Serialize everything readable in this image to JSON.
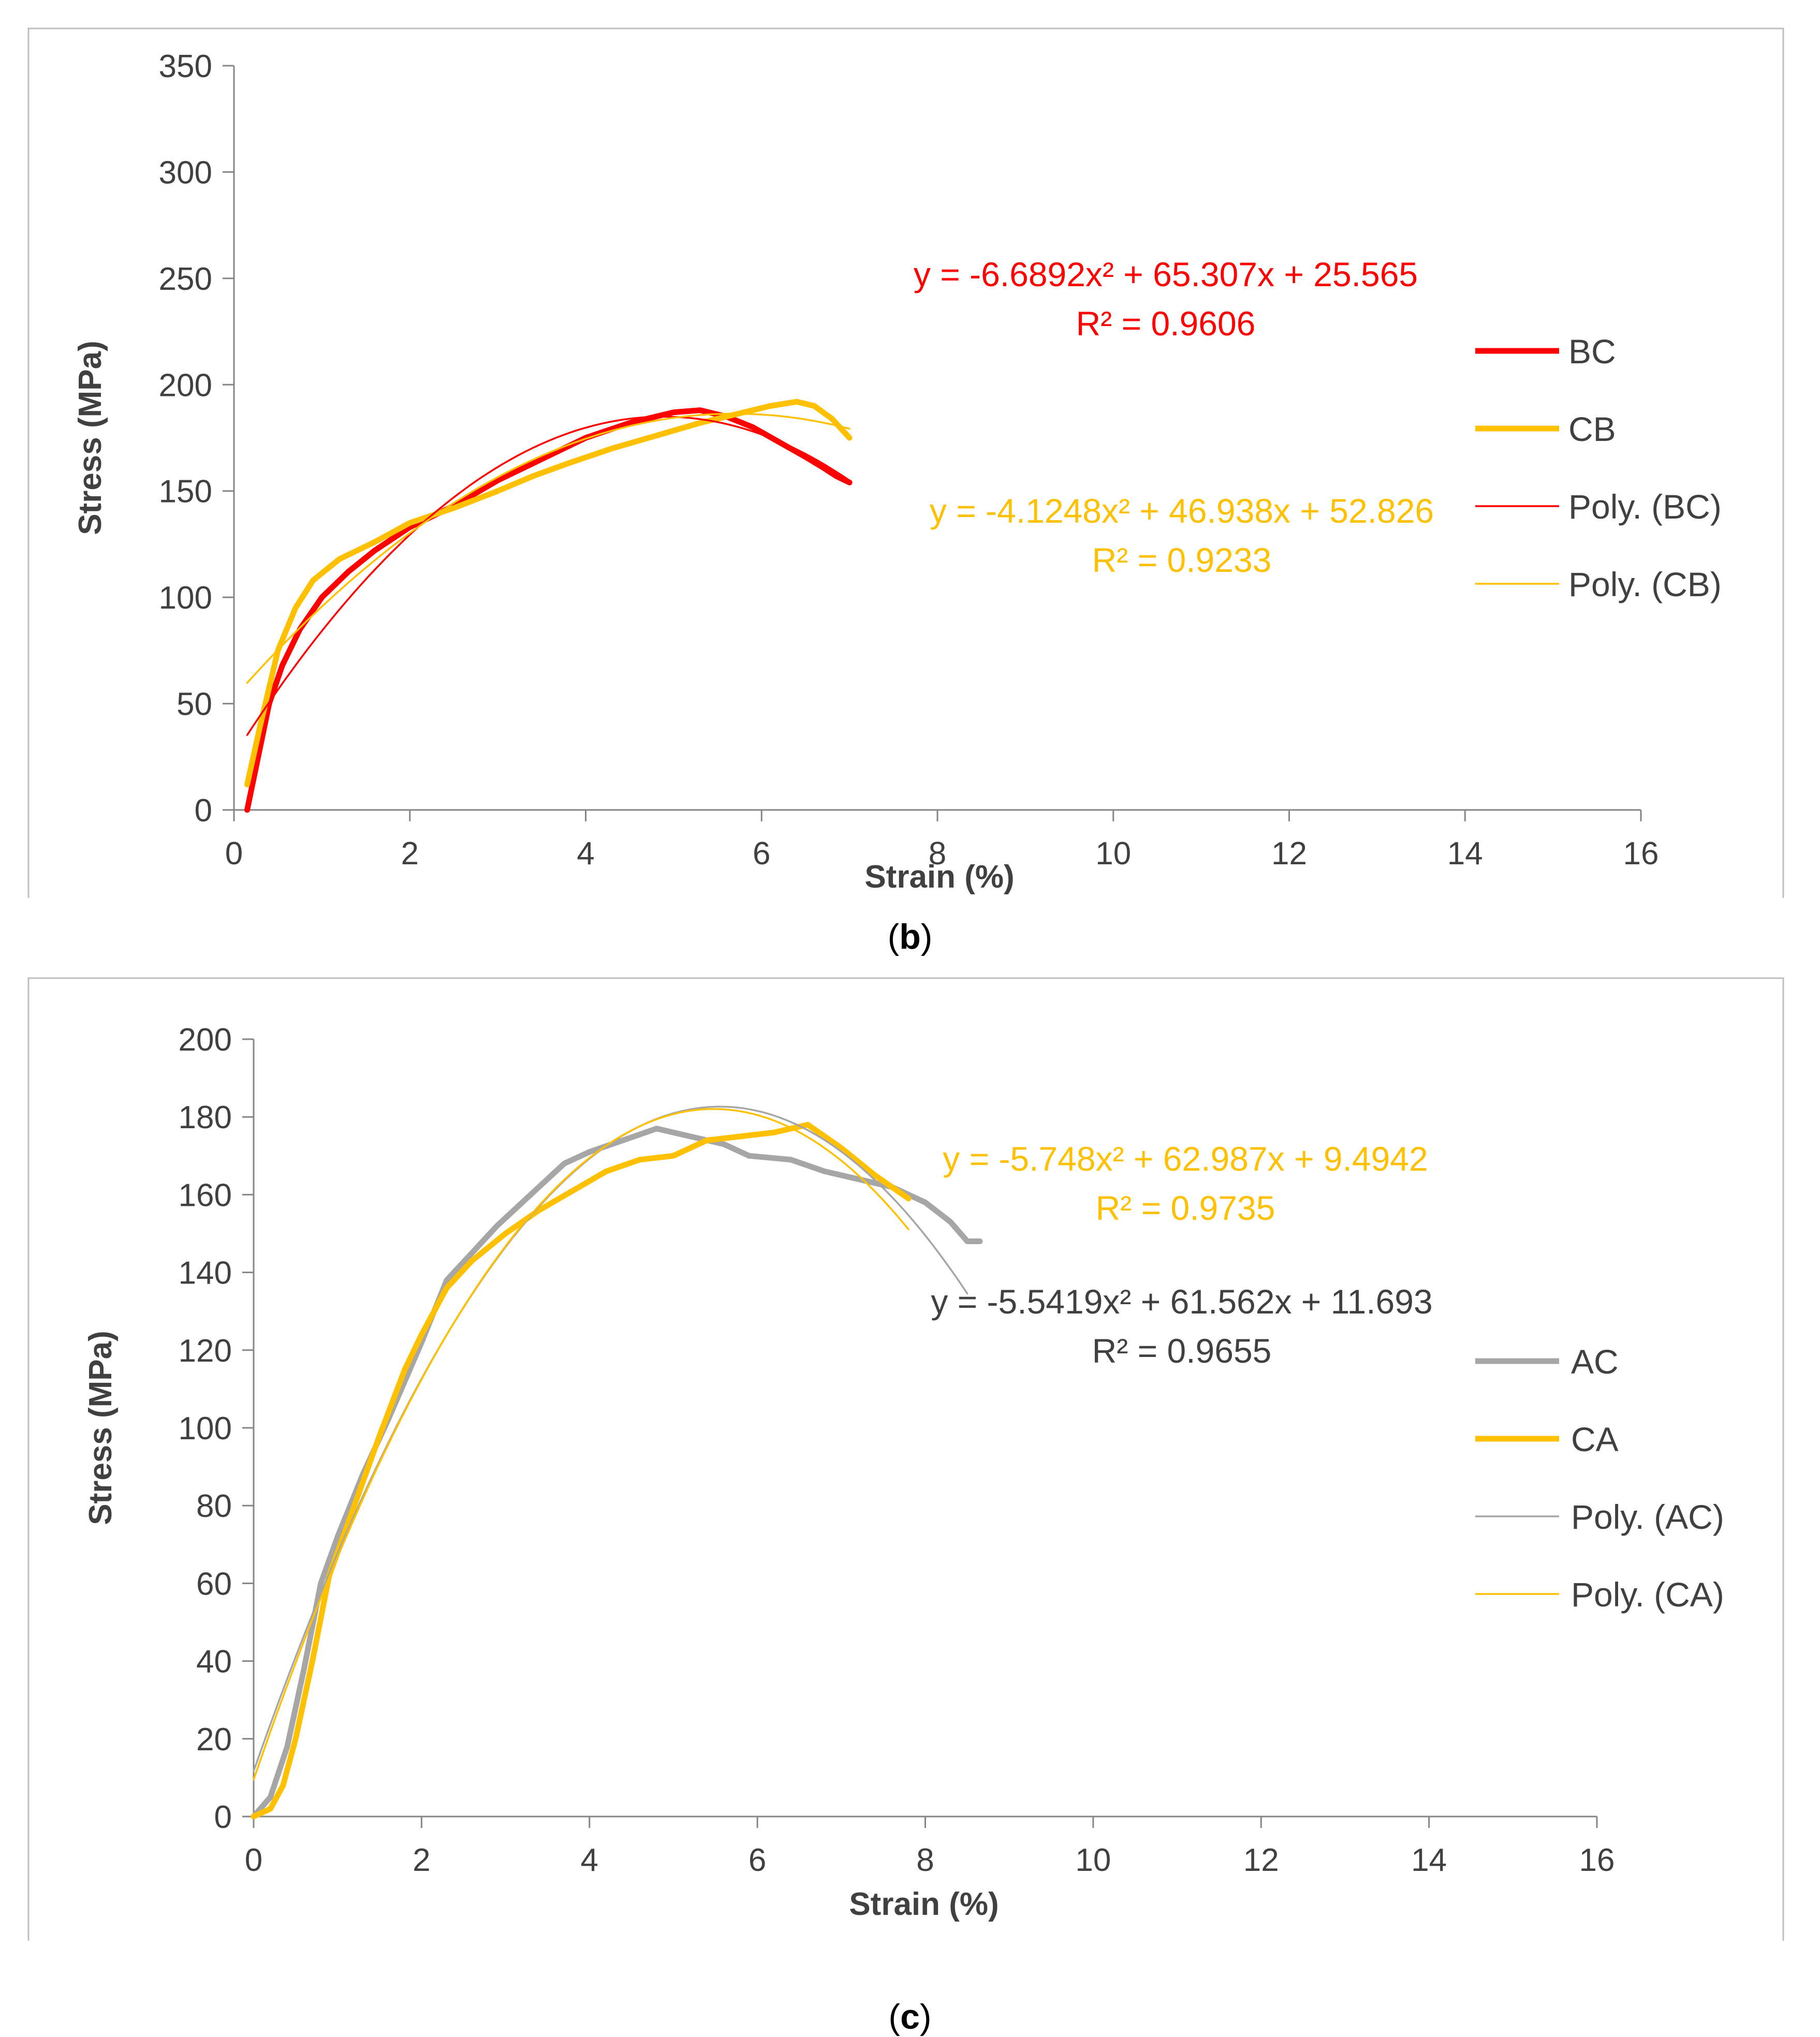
{
  "panels": [
    {
      "caption": "b",
      "chart_data": {
        "type": "line",
        "xlabel": "Strain (%)",
        "ylabel": "Stress (MPa)",
        "xlim": [
          0,
          16
        ],
        "ylim": [
          0,
          350
        ],
        "xticks": [
          0,
          2,
          4,
          6,
          8,
          10,
          12,
          14,
          16
        ],
        "yticks": [
          0,
          50,
          100,
          150,
          200,
          250,
          300,
          350
        ],
        "legend_position": "right",
        "series": [
          {
            "name": "BC",
            "kind": "data",
            "color": "#ff0000",
            "points": [
              [
                0.15,
                0
              ],
              [
                0.25,
                20
              ],
              [
                0.4,
                50
              ],
              [
                0.55,
                68
              ],
              [
                0.75,
                85
              ],
              [
                1.0,
                100
              ],
              [
                1.3,
                112
              ],
              [
                1.6,
                122
              ],
              [
                2.0,
                133
              ],
              [
                2.5,
                143
              ],
              [
                3.0,
                155
              ],
              [
                3.5,
                165
              ],
              [
                4.0,
                175
              ],
              [
                4.5,
                182
              ],
              [
                5.0,
                187
              ],
              [
                5.3,
                188
              ],
              [
                5.6,
                185
              ],
              [
                5.9,
                180
              ],
              [
                6.2,
                173
              ],
              [
                6.5,
                166
              ],
              [
                6.7,
                161
              ],
              [
                6.85,
                157
              ],
              [
                7.0,
                154
              ]
            ]
          },
          {
            "name": "CB",
            "kind": "data",
            "color": "#ffc000",
            "points": [
              [
                0.15,
                12
              ],
              [
                0.3,
                40
              ],
              [
                0.5,
                75
              ],
              [
                0.7,
                95
              ],
              [
                0.9,
                108
              ],
              [
                1.2,
                118
              ],
              [
                1.6,
                126
              ],
              [
                2.0,
                135
              ],
              [
                2.5,
                142
              ],
              [
                3.0,
                150
              ],
              [
                3.4,
                157
              ],
              [
                3.8,
                163
              ],
              [
                4.3,
                170
              ],
              [
                4.8,
                176
              ],
              [
                5.3,
                182
              ],
              [
                5.8,
                187
              ],
              [
                6.1,
                190
              ],
              [
                6.4,
                192
              ],
              [
                6.6,
                190
              ],
              [
                6.8,
                184
              ],
              [
                7.0,
                175
              ]
            ]
          },
          {
            "name": "Poly. (BC)",
            "kind": "trend",
            "color": "#ff0000",
            "coeffs": [
              -6.6892,
              65.307,
              25.565
            ],
            "xrange": [
              0.15,
              7.0
            ]
          },
          {
            "name": "Poly. (CB)",
            "kind": "trend",
            "color": "#ffc000",
            "coeffs": [
              -4.1248,
              46.938,
              52.826
            ],
            "xrange": [
              0.15,
              7.0
            ]
          }
        ],
        "annotations": [
          {
            "eq": "y = -6.6892x² + 65.307x + 25.565",
            "r2": "R² = 0.9606",
            "color": "#ff0000"
          },
          {
            "eq": "y = -4.1248x² + 46.938x + 52.826",
            "r2": "R² = 0.9233",
            "color": "#ffc000"
          }
        ]
      }
    },
    {
      "caption": "c",
      "chart_data": {
        "type": "line",
        "xlabel": "Strain (%)",
        "ylabel": "Stress (MPa)",
        "xlim": [
          0,
          16
        ],
        "ylim": [
          0,
          200
        ],
        "xticks": [
          0,
          2,
          4,
          6,
          8,
          10,
          12,
          14,
          16
        ],
        "yticks": [
          0,
          20,
          40,
          60,
          80,
          100,
          120,
          140,
          160,
          180,
          200
        ],
        "legend_position": "right",
        "series": [
          {
            "name": "AC",
            "kind": "data",
            "color": "#a6a6a6",
            "points": [
              [
                0,
                0
              ],
              [
                0.2,
                5
              ],
              [
                0.4,
                18
              ],
              [
                0.6,
                38
              ],
              [
                0.8,
                60
              ],
              [
                1.0,
                72
              ],
              [
                1.3,
                88
              ],
              [
                1.6,
                102
              ],
              [
                2.0,
                122
              ],
              [
                2.3,
                138
              ],
              [
                2.6,
                145
              ],
              [
                2.9,
                152
              ],
              [
                3.3,
                160
              ],
              [
                3.7,
                168
              ],
              [
                4.0,
                171
              ],
              [
                4.4,
                174
              ],
              [
                4.8,
                177
              ],
              [
                5.2,
                175
              ],
              [
                5.6,
                173
              ],
              [
                5.9,
                170
              ],
              [
                6.4,
                169
              ],
              [
                6.8,
                166
              ],
              [
                7.2,
                164
              ],
              [
                7.6,
                162
              ],
              [
                8.0,
                158
              ],
              [
                8.3,
                153
              ],
              [
                8.5,
                148
              ],
              [
                8.65,
                148
              ]
            ]
          },
          {
            "name": "CA",
            "kind": "data",
            "color": "#ffc000",
            "points": [
              [
                0,
                0
              ],
              [
                0.2,
                2
              ],
              [
                0.35,
                8
              ],
              [
                0.5,
                20
              ],
              [
                0.7,
                40
              ],
              [
                0.9,
                62
              ],
              [
                1.2,
                80
              ],
              [
                1.5,
                98
              ],
              [
                1.8,
                115
              ],
              [
                2.0,
                124
              ],
              [
                2.3,
                136
              ],
              [
                2.6,
                143
              ],
              [
                3.0,
                150
              ],
              [
                3.4,
                156
              ],
              [
                3.8,
                161
              ],
              [
                4.2,
                166
              ],
              [
                4.6,
                169
              ],
              [
                5.0,
                170
              ],
              [
                5.4,
                174
              ],
              [
                5.8,
                175
              ],
              [
                6.2,
                176
              ],
              [
                6.6,
                178
              ],
              [
                7.0,
                172
              ],
              [
                7.4,
                165
              ],
              [
                7.8,
                159
              ]
            ]
          },
          {
            "name": "Poly. (AC)",
            "kind": "trend",
            "color": "#a6a6a6",
            "coeffs": [
              -5.5419,
              61.562,
              11.693
            ],
            "xrange": [
              0,
              8.5
            ]
          },
          {
            "name": "Poly. (CA)",
            "kind": "trend",
            "color": "#ffc000",
            "coeffs": [
              -5.748,
              62.987,
              9.4942
            ],
            "xrange": [
              0,
              7.8
            ]
          }
        ],
        "annotations": [
          {
            "eq": "y = -5.748x² + 62.987x + 9.4942",
            "r2": "R² = 0.9735",
            "color": "#ffc000"
          },
          {
            "eq": "y = -5.5419x² + 61.562x + 11.693",
            "r2": "R² = 0.9655",
            "color": "#404040"
          }
        ]
      }
    }
  ]
}
